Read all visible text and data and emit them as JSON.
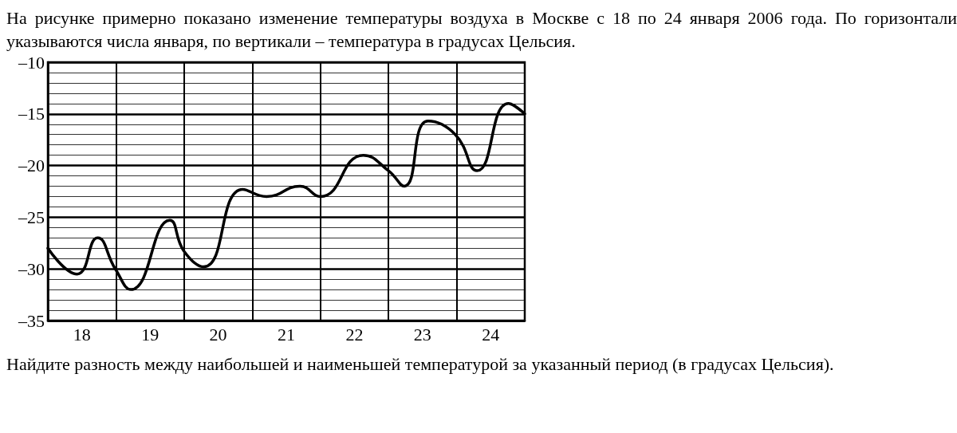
{
  "chart_data": {
    "type": "line",
    "title": "На рисунке примерно показано изменение температуры воздуха в Москве с 18 по 24 января 2006 года. По горизонтали указываются числа января, по вертикали – температура в градусах Цельсия.",
    "annotations": [
      "Найдите разность между наибольшей и наименьшей температурой за указанный период (в градусах Цельсия)."
    ],
    "x": [
      17.5,
      17.93,
      18.23,
      18.49,
      18.72,
      19.29,
      19.5,
      19.79,
      20.36,
      20.71,
      21.2,
      21.5,
      22.13,
      22.5,
      22.73,
      23.08,
      23.48,
      23.8,
      24.26,
      24.5
    ],
    "series": [
      {
        "color": "#000000",
        "values": [
          -28,
          -30.5,
          -27,
          -30,
          -32,
          -25.3,
          -28.3,
          -29.8,
          -22.3,
          -23,
          -22,
          -23,
          -19,
          -20.5,
          -22,
          -15.7,
          -17,
          -20.5,
          -14,
          -15
        ]
      }
    ],
    "xlim": [
      17.5,
      24.5
    ],
    "xticks": [
      {
        "value": 17.5,
        "label": null
      },
      18,
      {
        "value": 18.5,
        "label": null
      },
      19,
      {
        "value": 19.5,
        "label": null
      },
      20,
      {
        "value": 20.5,
        "label": null
      },
      21,
      {
        "value": 21.5,
        "label": null
      },
      22,
      {
        "value": 22.5,
        "label": null
      },
      23,
      {
        "value": 23.5,
        "label": null
      },
      24,
      {
        "value": 24.5,
        "label": null
      }
    ],
    "ylim": [
      -35,
      -10
    ],
    "yticks": [
      {
        "value": -35,
        "label": "–35"
      },
      {
        "value": -30,
        "label": "–30"
      },
      {
        "value": -25,
        "label": "–25"
      },
      {
        "value": -20,
        "label": "–20"
      },
      {
        "value": -15,
        "label": "–15"
      },
      {
        "value": -10,
        "label": "–10"
      }
    ],
    "grid": true,
    "marker": "none",
    "line_style": "solid"
  }
}
